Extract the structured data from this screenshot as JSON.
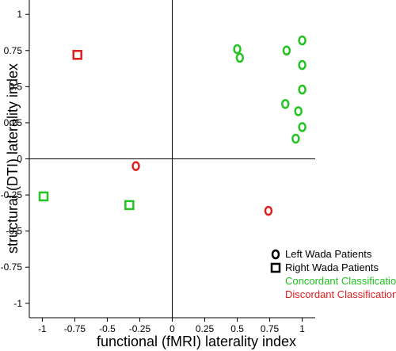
{
  "chart_data": {
    "type": "scatter",
    "xlabel": "functional (fMRI) laterality index",
    "ylabel": "structural (DTI) laterality index",
    "xlim": [
      -1.1,
      1.1
    ],
    "ylim": [
      -1.1,
      1.1
    ],
    "x_ticks": [
      "-1",
      "-0.75",
      "-0.5",
      "-0.25",
      "0",
      "0.25",
      "0.5",
      "0.75",
      "1"
    ],
    "y_ticks": [
      "1",
      "0.75",
      "0.5",
      "0.25",
      "0",
      "-0.25",
      "-0.5",
      "-0.75",
      "-1"
    ],
    "grid": false,
    "legend_position": "bottom-right",
    "colors": {
      "concordant": "#22c322",
      "discordant": "#dd1f1f",
      "marker_legend": "#000000"
    },
    "series": [
      {
        "name": "Left Wada Patients",
        "marker": "circle",
        "points": [
          {
            "x": 0.5,
            "y": 0.76,
            "class": "concordant"
          },
          {
            "x": 0.52,
            "y": 0.7,
            "class": "concordant"
          },
          {
            "x": 0.88,
            "y": 0.75,
            "class": "concordant"
          },
          {
            "x": 1.0,
            "y": 0.82,
            "class": "concordant"
          },
          {
            "x": 1.0,
            "y": 0.65,
            "class": "concordant"
          },
          {
            "x": 1.0,
            "y": 0.48,
            "class": "concordant"
          },
          {
            "x": 0.87,
            "y": 0.38,
            "class": "concordant"
          },
          {
            "x": 0.97,
            "y": 0.33,
            "class": "concordant"
          },
          {
            "x": 1.0,
            "y": 0.22,
            "class": "concordant"
          },
          {
            "x": 0.95,
            "y": 0.14,
            "class": "concordant"
          },
          {
            "x": -0.28,
            "y": -0.05,
            "class": "discordant"
          },
          {
            "x": 0.74,
            "y": -0.36,
            "class": "discordant"
          }
        ]
      },
      {
        "name": "Right Wada Patients",
        "marker": "square",
        "points": [
          {
            "x": -0.73,
            "y": 0.72,
            "class": "discordant"
          },
          {
            "x": -0.99,
            "y": -0.26,
            "class": "concordant"
          },
          {
            "x": -0.33,
            "y": -0.32,
            "class": "concordant"
          }
        ]
      }
    ],
    "legend": [
      {
        "label": "Left Wada Patients",
        "marker": "circle",
        "color": "#000000"
      },
      {
        "label": "Right Wada Patients",
        "marker": "square",
        "color": "#000000"
      },
      {
        "label": "Concordant Classification",
        "marker": "none",
        "color": "#22c322"
      },
      {
        "label": "Discordant Classification",
        "marker": "none",
        "color": "#dd1f1f"
      }
    ]
  }
}
